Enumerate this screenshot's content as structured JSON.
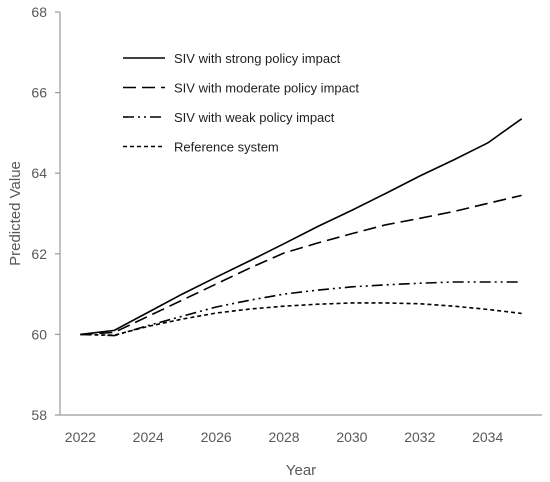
{
  "chart_data": {
    "type": "line",
    "title": "",
    "xlabel": "Year",
    "ylabel": "Predicted Value",
    "xlim": [
      2021.4,
      2035.6
    ],
    "ylim": [
      58,
      68
    ],
    "x_ticks": [
      "2022",
      "2024",
      "2026",
      "2028",
      "2030",
      "2032",
      "2034"
    ],
    "y_ticks": [
      "58",
      "60",
      "62",
      "64",
      "66",
      "68"
    ],
    "grid": false,
    "legend_position": "top-left",
    "x": [
      2022,
      2023,
      2024,
      2025,
      2026,
      2027,
      2028,
      2029,
      2030,
      2031,
      2032,
      2033,
      2034,
      2035
    ],
    "series": [
      {
        "name": "SIV with strong policy impact",
        "dash": "solid",
        "color": "#000000",
        "values": [
          60.0,
          60.1,
          60.55,
          61.0,
          61.42,
          61.83,
          62.25,
          62.68,
          63.08,
          63.5,
          63.93,
          64.33,
          64.75,
          65.35
        ]
      },
      {
        "name": "SIV with moderate policy impact",
        "dash": "long-dash",
        "color": "#000000",
        "values": [
          60.0,
          60.05,
          60.45,
          60.85,
          61.25,
          61.65,
          62.02,
          62.27,
          62.5,
          62.72,
          62.88,
          63.05,
          63.25,
          63.45
        ]
      },
      {
        "name": "SIV with weak policy impact",
        "dash": "dash-dot-dot",
        "color": "#000000",
        "values": [
          60.0,
          59.97,
          60.22,
          60.45,
          60.68,
          60.85,
          61.0,
          61.1,
          61.18,
          61.23,
          61.27,
          61.3,
          61.3,
          61.3
        ]
      },
      {
        "name": "Reference system",
        "dash": "short-dash",
        "color": "#000000",
        "values": [
          60.0,
          59.98,
          60.2,
          60.38,
          60.53,
          60.63,
          60.7,
          60.75,
          60.78,
          60.78,
          60.76,
          60.7,
          60.62,
          60.52
        ]
      }
    ]
  }
}
